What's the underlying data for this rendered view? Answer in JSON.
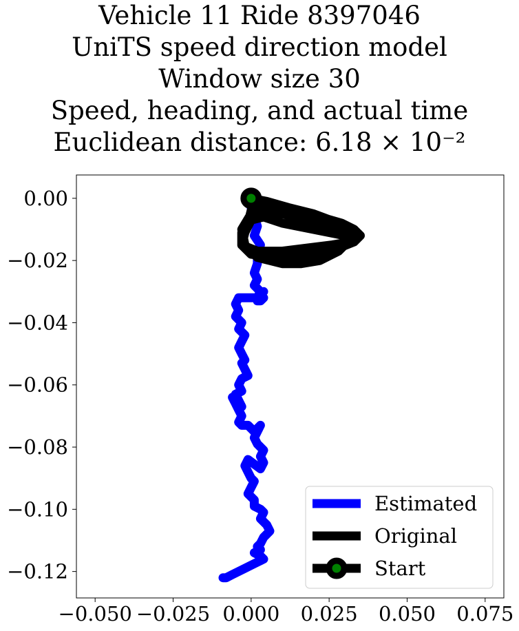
{
  "title_lines": [
    "Vehicle 11 Ride 8397046",
    "UniTS speed direction model",
    "Window size 30",
    "Speed, heading, and actual time",
    "Euclidean distance: 6.18 × 10⁻²"
  ],
  "chart_data": {
    "type": "line",
    "title": "Vehicle 11 Ride 8397046 / UniTS speed direction model / Window size 30 / Speed, heading, and actual time / Euclidean distance: 6.18×10^-2",
    "xlabel": "",
    "ylabel": "",
    "xlim": [
      -0.056,
      0.081
    ],
    "ylim": [
      -0.1285,
      0.0075
    ],
    "xticks": [
      -0.05,
      -0.025,
      0.0,
      0.025,
      0.05,
      0.075
    ],
    "xtick_labels": [
      "−0.050",
      "−0.025",
      "0.000",
      "0.025",
      "0.050",
      "0.075"
    ],
    "yticks": [
      0.0,
      -0.02,
      -0.04,
      -0.06,
      -0.08,
      -0.1,
      -0.12
    ],
    "ytick_labels": [
      "0.00",
      "−0.02",
      "−0.04",
      "−0.06",
      "−0.08",
      "−0.10",
      "−0.12"
    ],
    "grid": false,
    "legend_position": "lower right",
    "series": [
      {
        "name": "Estimated",
        "color": "#0000ff",
        "x": [
          0.0,
          0.001,
          0.002,
          0.001,
          0.003,
          0.002,
          0.002,
          0.001,
          0.002,
          0.001,
          0.003,
          0.002,
          0.004,
          0.003,
          0.002,
          0.003,
          0.004,
          -0.004,
          -0.005,
          -0.004,
          -0.005,
          -0.003,
          -0.004,
          -0.002,
          -0.003,
          -0.004,
          -0.003,
          -0.002,
          -0.003,
          -0.002,
          -0.001,
          -0.003,
          -0.004,
          -0.003,
          -0.005,
          -0.004,
          -0.003,
          -0.006,
          -0.005,
          -0.004,
          -0.003,
          -0.004,
          -0.003,
          -0.001,
          0.001,
          0.003,
          0.001,
          0.002,
          0.004,
          0.003,
          0.004,
          0.003,
          -0.001,
          -0.002,
          -0.001,
          0.0,
          0.001,
          0.0,
          -0.001,
          0.001,
          0.001,
          0.003,
          0.004,
          0.003,
          0.005,
          0.006,
          0.004,
          0.003,
          0.002,
          0.003,
          0.001,
          0.003,
          0.004,
          0.002,
          0.0,
          -0.002,
          -0.004,
          -0.006,
          -0.008,
          -0.009
        ],
        "y": [
          -0.003,
          -0.006,
          -0.009,
          -0.012,
          -0.015,
          -0.018,
          -0.021,
          -0.024,
          -0.026,
          -0.028,
          -0.03,
          -0.032,
          -0.03,
          -0.031,
          -0.033,
          -0.033,
          -0.032,
          -0.032,
          -0.034,
          -0.036,
          -0.038,
          -0.04,
          -0.042,
          -0.044,
          -0.046,
          -0.048,
          -0.05,
          -0.052,
          -0.053,
          -0.055,
          -0.057,
          -0.058,
          -0.06,
          -0.062,
          -0.063,
          -0.065,
          -0.067,
          -0.064,
          -0.066,
          -0.068,
          -0.07,
          -0.072,
          -0.073,
          -0.073,
          -0.075,
          -0.073,
          -0.077,
          -0.079,
          -0.081,
          -0.083,
          -0.085,
          -0.087,
          -0.084,
          -0.086,
          -0.088,
          -0.09,
          -0.091,
          -0.093,
          -0.095,
          -0.097,
          -0.099,
          -0.1,
          -0.101,
          -0.103,
          -0.105,
          -0.107,
          -0.109,
          -0.111,
          -0.112,
          -0.113,
          -0.114,
          -0.115,
          -0.116,
          -0.117,
          -0.118,
          -0.119,
          -0.12,
          -0.121,
          -0.122,
          -0.122
        ]
      },
      {
        "name": "Original",
        "color": "#000000",
        "x": [
          0.0,
          0.005,
          0.012,
          0.02,
          0.028,
          0.033,
          0.035,
          0.033,
          0.028,
          0.02,
          0.012,
          0.004,
          -0.002,
          -0.003,
          -0.001,
          0.0,
          0.006,
          0.014,
          0.022,
          0.029,
          0.033,
          0.034,
          0.032,
          0.026,
          0.018,
          0.01,
          0.002,
          -0.003,
          -0.003,
          0.0,
          0.003,
          0.01,
          0.018,
          0.026,
          0.032,
          0.034,
          0.03,
          0.024,
          0.016,
          0.008,
          0.0,
          -0.003,
          -0.002,
          0.0,
          0.004,
          0.01,
          0.02,
          0.03,
          0.033,
          0.034,
          0.031,
          0.028,
          0.022,
          0.016,
          0.01,
          0.002,
          -0.002,
          -0.003,
          0.0
        ],
        "y": [
          0.0,
          -0.001,
          -0.003,
          -0.005,
          -0.008,
          -0.01,
          -0.012,
          -0.014,
          -0.016,
          -0.017,
          -0.018,
          -0.018,
          -0.016,
          -0.012,
          -0.008,
          -0.004,
          -0.002,
          -0.004,
          -0.006,
          -0.008,
          -0.01,
          -0.012,
          -0.014,
          -0.015,
          -0.016,
          -0.017,
          -0.017,
          -0.015,
          -0.011,
          -0.007,
          -0.004,
          -0.005,
          -0.007,
          -0.009,
          -0.011,
          -0.013,
          -0.015,
          -0.017,
          -0.019,
          -0.019,
          -0.018,
          -0.015,
          -0.011,
          -0.007,
          -0.006,
          -0.008,
          -0.01,
          -0.012,
          -0.013,
          -0.012,
          -0.014,
          -0.017,
          -0.02,
          -0.021,
          -0.021,
          -0.019,
          -0.015,
          -0.01,
          -0.005
        ]
      }
    ],
    "start_point": {
      "name": "Start",
      "x": 0.0,
      "y": 0.0,
      "marker_color": "#008000",
      "edge_color": "#000000"
    },
    "legend_entries": [
      {
        "label": "Estimated",
        "color": "#0000ff",
        "kind": "line"
      },
      {
        "label": "Original",
        "color": "#000000",
        "kind": "line"
      },
      {
        "label": "Start",
        "color": "#000000",
        "kind": "marker"
      }
    ]
  }
}
